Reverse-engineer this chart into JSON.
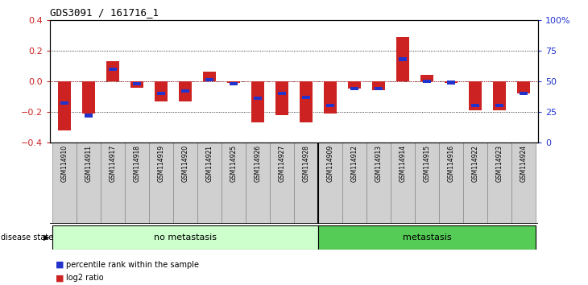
{
  "title": "GDS3091 / 161716_1",
  "samples": [
    "GSM114910",
    "GSM114911",
    "GSM114917",
    "GSM114918",
    "GSM114919",
    "GSM114920",
    "GSM114921",
    "GSM114925",
    "GSM114926",
    "GSM114927",
    "GSM114928",
    "GSM114909",
    "GSM114912",
    "GSM114913",
    "GSM114914",
    "GSM114915",
    "GSM114916",
    "GSM114922",
    "GSM114923",
    "GSM114924"
  ],
  "log2_ratio": [
    -0.32,
    -0.21,
    0.13,
    -0.04,
    -0.13,
    -0.13,
    0.06,
    -0.01,
    -0.27,
    -0.22,
    -0.27,
    -0.21,
    -0.05,
    -0.06,
    0.29,
    0.04,
    -0.01,
    -0.19,
    -0.19,
    -0.08
  ],
  "percentile": [
    0.32,
    0.22,
    0.6,
    0.48,
    0.4,
    0.42,
    0.51,
    0.48,
    0.36,
    0.4,
    0.37,
    0.3,
    0.44,
    0.44,
    0.68,
    0.5,
    0.49,
    0.3,
    0.3,
    0.4
  ],
  "no_metastasis_count": 11,
  "metastasis_count": 9,
  "ylim": [
    -0.4,
    0.4
  ],
  "yticks_left": [
    -0.4,
    -0.2,
    0.0,
    0.2,
    0.4
  ],
  "yticks_right_labels": [
    "0",
    "25",
    "50",
    "75",
    "100%"
  ],
  "red_color": "#cc2222",
  "blue_color": "#2233cc",
  "no_meta_color": "#ccffcc",
  "meta_color": "#55cc55",
  "tick_bg_color": "#d0d0d0"
}
